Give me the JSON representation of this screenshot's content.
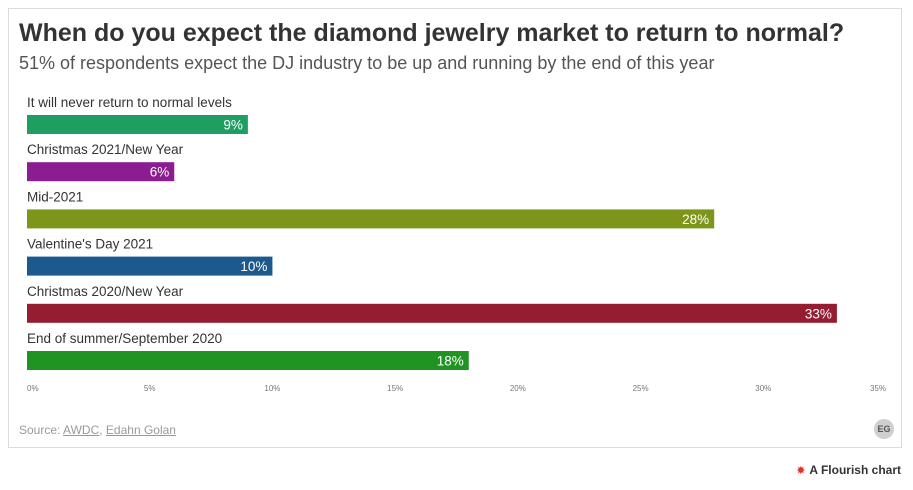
{
  "title": "When do you expect the diamond jewelry market to return to normal?",
  "subtitle": "51% of respondents expect the DJ industry to be up and running by the end of this year",
  "chart_data": {
    "type": "bar",
    "orientation": "horizontal",
    "categories": [
      "It will never return to normal levels",
      "Christmas 2021/New Year",
      "Mid-2021",
      "Valentine's Day 2021",
      "Christmas 2020/New Year",
      "End of summer/September 2020"
    ],
    "values": [
      9,
      6,
      28,
      10,
      33,
      18
    ],
    "value_labels": [
      "9%",
      "6%",
      "28%",
      "10%",
      "33%",
      "18%"
    ],
    "colors": [
      "#1f9e62",
      "#8b1c91",
      "#7b9619",
      "#1c5a8d",
      "#961c32",
      "#1f9422"
    ],
    "xlim": [
      0,
      35
    ],
    "xticks": [
      0,
      5,
      10,
      15,
      20,
      25,
      30,
      35
    ],
    "xtick_labels": [
      "0%",
      "5%",
      "10%",
      "15%",
      "20%",
      "25%",
      "30%",
      "35%"
    ],
    "grid": false,
    "legend": "none"
  },
  "footer": {
    "source_prefix": "Source: ",
    "source_link_1": "AWDC",
    "source_separator": ", ",
    "source_link_2": "Edahn Golan",
    "badge_text": "EG"
  },
  "branding": {
    "label": "A Flourish chart"
  }
}
